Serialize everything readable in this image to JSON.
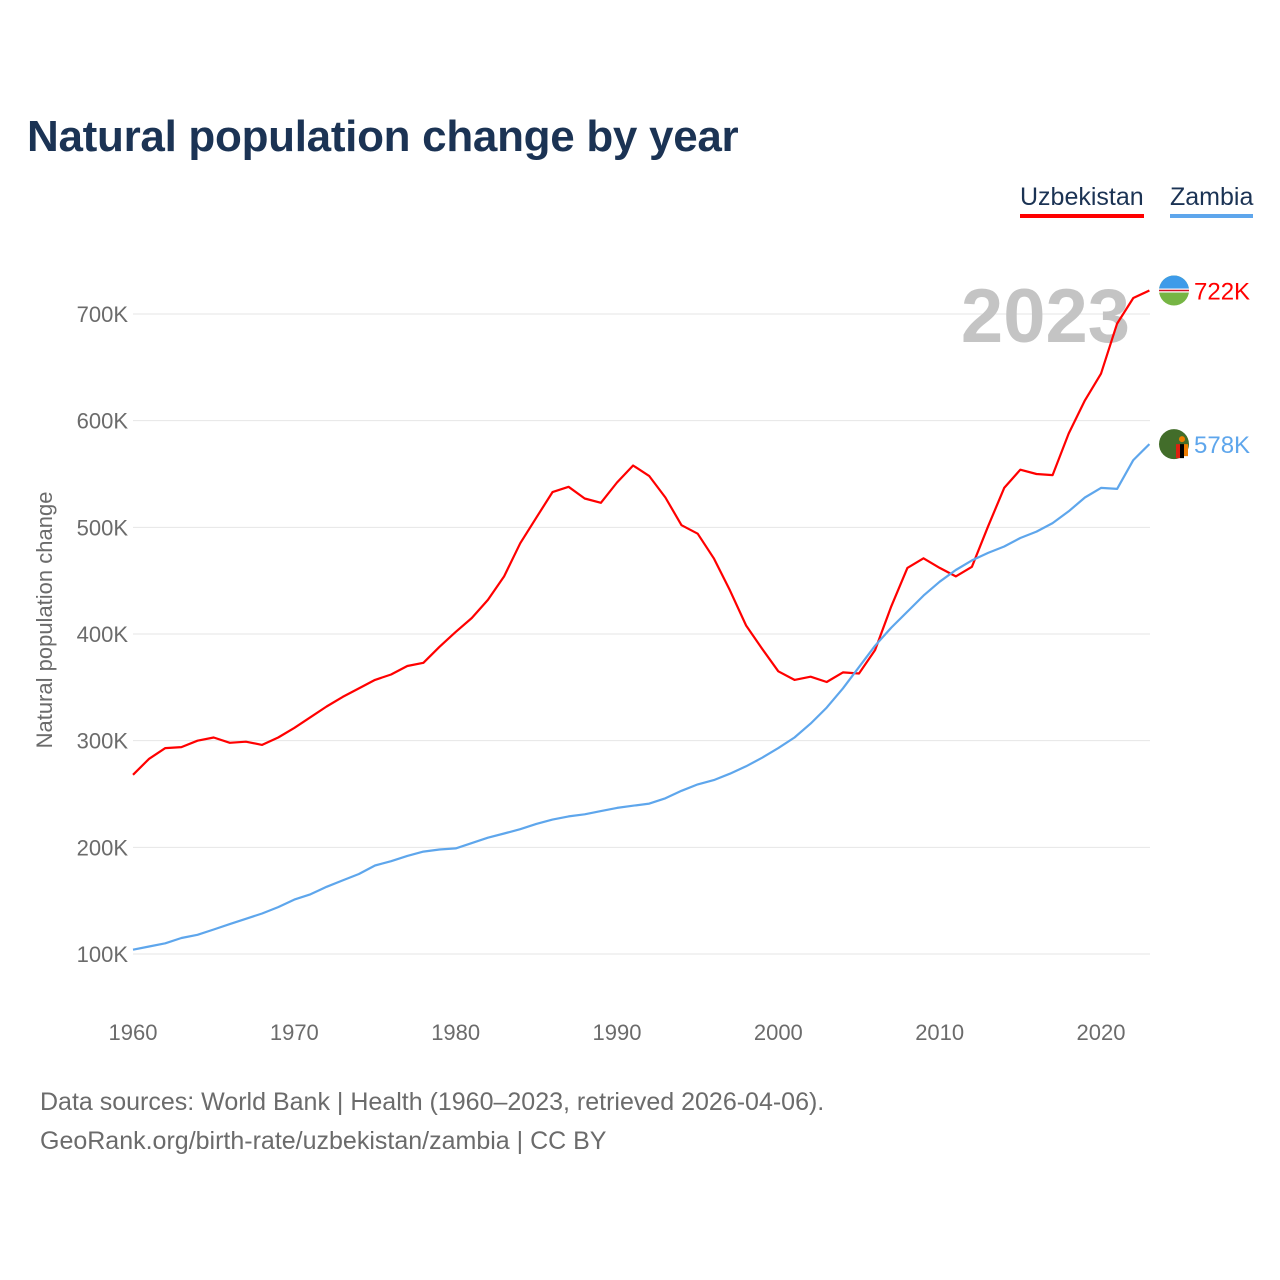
{
  "chart_data": {
    "type": "line",
    "title": "Natural population change by year",
    "xlabel": "",
    "ylabel": "Natural population change",
    "xlim": [
      1960,
      2023
    ],
    "ylim": [
      50,
      760
    ],
    "x_ticks": [
      "1960",
      "1970",
      "1980",
      "1990",
      "2000",
      "2010",
      "2020"
    ],
    "y_ticks": [
      "100K",
      "200K",
      "300K",
      "400K",
      "500K",
      "600K",
      "700K"
    ],
    "y_tick_values": [
      100,
      200,
      300,
      400,
      500,
      600,
      700
    ],
    "grid": true,
    "legend": "top-right",
    "year_label": "2023",
    "x": [
      1960,
      1961,
      1962,
      1963,
      1964,
      1965,
      1966,
      1967,
      1968,
      1969,
      1970,
      1971,
      1972,
      1973,
      1974,
      1975,
      1976,
      1977,
      1978,
      1979,
      1980,
      1981,
      1982,
      1983,
      1984,
      1985,
      1986,
      1987,
      1988,
      1989,
      1990,
      1991,
      1992,
      1993,
      1994,
      1995,
      1996,
      1997,
      1998,
      1999,
      2000,
      2001,
      2002,
      2003,
      2004,
      2005,
      2006,
      2007,
      2008,
      2009,
      2010,
      2011,
      2012,
      2013,
      2014,
      2015,
      2016,
      2017,
      2018,
      2019,
      2020,
      2021,
      2022,
      2023
    ],
    "series": [
      {
        "name": "Uzbekistan",
        "color": "#ff0000",
        "end_label": "722K",
        "values": [
          268,
          283,
          293,
          294,
          300,
          303,
          298,
          299,
          296,
          303,
          312,
          322,
          332,
          341,
          349,
          357,
          362,
          370,
          373,
          388,
          402,
          415,
          432,
          454,
          485,
          509,
          533,
          538,
          527,
          523,
          542,
          558,
          548,
          528,
          502,
          494,
          471,
          441,
          408,
          386,
          365,
          357,
          360,
          355,
          364,
          363,
          385,
          426,
          462,
          471,
          462,
          454,
          463,
          501,
          537,
          554,
          550,
          549,
          588,
          619,
          644,
          691,
          715,
          722
        ]
      },
      {
        "name": "Zambia",
        "color": "#5ea6ec",
        "end_label": "578K",
        "values": [
          104,
          107,
          110,
          115,
          118,
          123,
          128,
          133,
          138,
          144,
          151,
          156,
          163,
          169,
          175,
          183,
          187,
          192,
          196,
          198,
          199,
          204,
          209,
          213,
          217,
          222,
          226,
          229,
          231,
          234,
          237,
          239,
          241,
          246,
          253,
          259,
          263,
          269,
          276,
          284,
          293,
          303,
          316,
          331,
          349,
          369,
          389,
          406,
          421,
          436,
          449,
          460,
          469,
          476,
          482,
          490,
          496,
          504,
          515,
          528,
          537,
          536,
          563,
          578
        ]
      }
    ]
  },
  "source": {
    "line1": "Data sources: World Bank | Health (1960–2023, retrieved 2026-04-06).",
    "line2": "GeoRank.org/birth-rate/uzbekistan/zambia | CC BY"
  }
}
